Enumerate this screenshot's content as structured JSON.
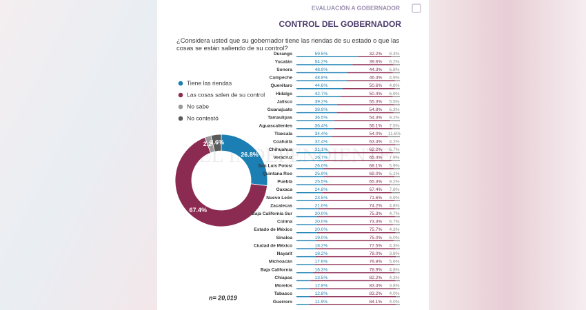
{
  "header": {
    "section": "EVALUACIÓN A GOBERNADOR",
    "title": "CONTROL DEL GOBERNADOR",
    "question": "¿Considera usted que su gobernador tiene las riendas de su estado o que las cosas se están saliendo de su control?"
  },
  "watermark": "EL INDEPENDIENTE",
  "chart_data": [
    {
      "type": "pie",
      "donut": true,
      "categories": [
        "Tiene las riendas",
        "Las cosas salen de su control",
        "No sabe",
        "No contestó"
      ],
      "values": [
        26.8,
        67.4,
        2.2,
        3.6
      ],
      "value_labels": [
        "26.8%",
        "67.4%",
        "2.2%",
        "3.6%"
      ],
      "colors": [
        "#1b7fb3",
        "#8c2b52",
        "#9a9a9a",
        "#5a5a5a"
      ],
      "note": "n= 20,019"
    },
    {
      "type": "bar",
      "orientation": "horizontal",
      "stacked": true,
      "categories": [
        "Durango",
        "Yucatán",
        "Sonora",
        "Campeche",
        "Querétaro",
        "Hidalgo",
        "Jalisco",
        "Guanajuato",
        "Tamaulipas",
        "Aguascalientes",
        "Tlaxcala",
        "Coahuila",
        "Chihuahua",
        "Veracruz",
        "San Luis Potosí",
        "Quintana Roo",
        "Puebla",
        "Oaxaca",
        "Nuevo León",
        "Zacatecas",
        "Baja California Sur",
        "Colima",
        "Estado de México",
        "Sinaloa",
        "Ciudad de México",
        "Nayarit",
        "Michoacán",
        "Baja California",
        "Chiapas",
        "Morelos",
        "Tabasco",
        "Guerrero"
      ],
      "xlim": [
        0,
        100
      ],
      "series": [
        {
          "color": "#1b7fb3",
          "values": [
            59.5,
            54.2,
            48.9,
            48.8,
            44.6,
            42.7,
            39.2,
            38.9,
            36.5,
            36.4,
            34.4,
            32.4,
            31.1,
            26.7,
            26.0,
            25.9,
            25.5,
            24.8,
            23.5,
            21.0,
            20.0,
            20.0,
            20.0,
            19.0,
            18.2,
            18.2,
            17.6,
            16.3,
            13.5,
            12.8,
            12.8,
            11.9
          ],
          "value_labels": [
            "59.5%",
            "54.2%",
            "48.9%",
            "48.8%",
            "44.6%",
            "42.7%",
            "39.2%",
            "38.9%",
            "36.5%",
            "36.4%",
            "34.4%",
            "32.4%",
            "31.1%",
            "26.7%",
            "26.0%",
            "25.9%",
            "25.5%",
            "24.8%",
            "23.5%",
            "21.0%",
            "20.0%",
            "20.0%",
            "20.0%",
            "19.0%",
            "18.2%",
            "18.2%",
            "17.6%",
            "16.3%",
            "13.5%",
            "12.8%",
            "12.8%",
            "11.9%"
          ]
        },
        {
          "color": "#8c2b52",
          "values": [
            32.2,
            39.6,
            44.3,
            46.4,
            50.6,
            50.4,
            55.3,
            54.8,
            54.3,
            56.1,
            54.0,
            63.4,
            62.2,
            65.4,
            68.1,
            69.0,
            65.3,
            67.4,
            71.6,
            74.2,
            75.3,
            73.3,
            75.7,
            75.0,
            77.5,
            78.0,
            76.8,
            78.9,
            82.2,
            83.4,
            83.2,
            84.1
          ],
          "value_labels": [
            "32.2%",
            "39.6%",
            "44.3%",
            "46.4%",
            "50.6%",
            "50.4%",
            "55.3%",
            "54.8%",
            "54.3%",
            "56.1%",
            "54.0%",
            "63.4%",
            "62.2%",
            "65.4%",
            "68.1%",
            "69.0%",
            "65.3%",
            "67.4%",
            "71.6%",
            "74.2%",
            "75.3%",
            "73.3%",
            "75.7%",
            "75.0%",
            "77.5%",
            "78.0%",
            "76.8%",
            "78.9%",
            "82.2%",
            "83.4%",
            "83.2%",
            "84.1%"
          ]
        },
        {
          "color": "#8a8a8a",
          "values": [
            8.3,
            6.2,
            6.8,
            4.9,
            4.8,
            6.9,
            5.5,
            6.3,
            9.2,
            7.5,
            11.6,
            4.2,
            6.7,
            7.9,
            5.9,
            5.1,
            9.2,
            7.8,
            4.9,
            4.8,
            4.7,
            6.7,
            4.3,
            6.0,
            4.3,
            3.8,
            5.6,
            4.8,
            4.3,
            3.8,
            4.0,
            4.0
          ],
          "value_labels": [
            "8.3%",
            "6.2%",
            "6.8%",
            "4.9%",
            "4.8%",
            "6.9%",
            "5.5%",
            "6.3%",
            "9.2%",
            "7.5%",
            "11.6%",
            "4.2%",
            "6.7%",
            "7.9%",
            "5.9%",
            "5.1%",
            "9.2%",
            "7.8%",
            "4.9%",
            "4.8%",
            "4.7%",
            "6.7%",
            "4.3%",
            "6.0%",
            "4.3%",
            "3.8%",
            "5.6%",
            "4.8%",
            "4.3%",
            "3.8%",
            "4.0%",
            "4.0%"
          ]
        }
      ]
    }
  ]
}
